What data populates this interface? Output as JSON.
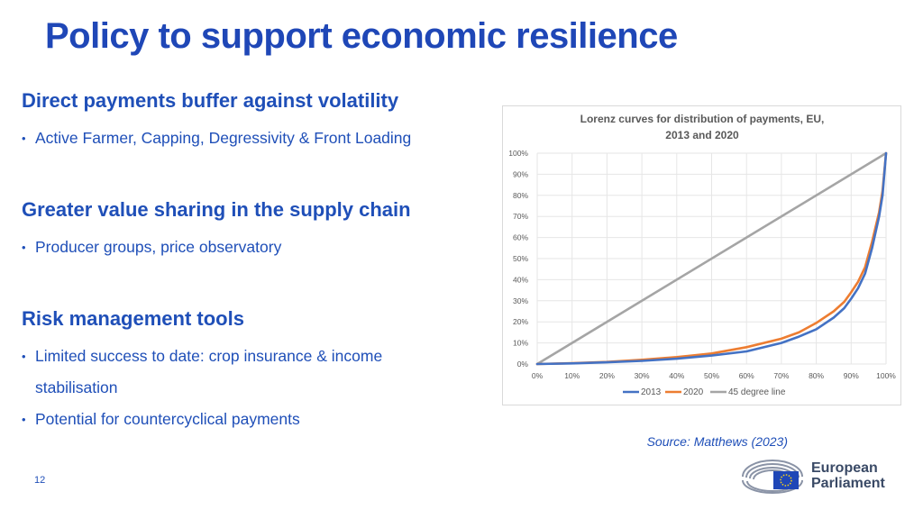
{
  "slide": {
    "title": "Policy to support economic resilience",
    "page_number": "12",
    "source": "Source: Matthews (2023)",
    "logo": {
      "line1": "European",
      "line2": "Parliament"
    }
  },
  "sections": [
    {
      "heading": "Direct payments buffer against volatility",
      "bullets": [
        "Active Farmer, Capping, Degressivity & Front Loading"
      ]
    },
    {
      "heading": "Greater value sharing in the supply chain",
      "bullets": [
        "Producer groups, price observatory"
      ]
    },
    {
      "heading": "Risk management tools",
      "bullets": [
        "Limited success to date: crop insurance & income",
        "stabilisation",
        "Potential for countercyclical payments"
      ]
    }
  ],
  "chart_data": {
    "type": "line",
    "title": "Lorenz curves for distribution of payments, EU,",
    "subtitle": "2013 and 2020",
    "xlim": [
      0,
      100
    ],
    "ylim": [
      0,
      100
    ],
    "x_tick_labels": [
      "0%",
      "10%",
      "20%",
      "30%",
      "40%",
      "50%",
      "60%",
      "70%",
      "80%",
      "90%",
      "100%"
    ],
    "y_tick_labels": [
      "0%",
      "10%",
      "20%",
      "30%",
      "40%",
      "50%",
      "60%",
      "70%",
      "80%",
      "90%",
      "100%"
    ],
    "grid": true,
    "legend_position": "bottom",
    "series": [
      {
        "name": "2013",
        "color": "#4472c4",
        "x": [
          0,
          10,
          20,
          30,
          40,
          50,
          60,
          70,
          75,
          80,
          85,
          88,
          90,
          92,
          94,
          96,
          98,
          99,
          100
        ],
        "y": [
          0,
          0.3,
          0.8,
          1.5,
          2.5,
          4,
          6,
          10,
          13,
          16.5,
          22,
          26.5,
          31,
          36,
          43,
          55,
          70,
          80,
          100
        ]
      },
      {
        "name": "2020",
        "color": "#ed7d31",
        "x": [
          0,
          10,
          20,
          30,
          40,
          50,
          60,
          70,
          75,
          80,
          85,
          88,
          90,
          92,
          94,
          96,
          98,
          99,
          100
        ],
        "y": [
          0,
          0.4,
          1,
          2,
          3.3,
          5,
          8,
          12,
          15,
          19.5,
          25,
          29.5,
          34,
          39,
          46,
          58,
          72,
          82,
          100
        ]
      },
      {
        "name": "45 degree line",
        "color": "#a5a5a5",
        "x": [
          0,
          100
        ],
        "y": [
          0,
          100
        ]
      }
    ]
  }
}
